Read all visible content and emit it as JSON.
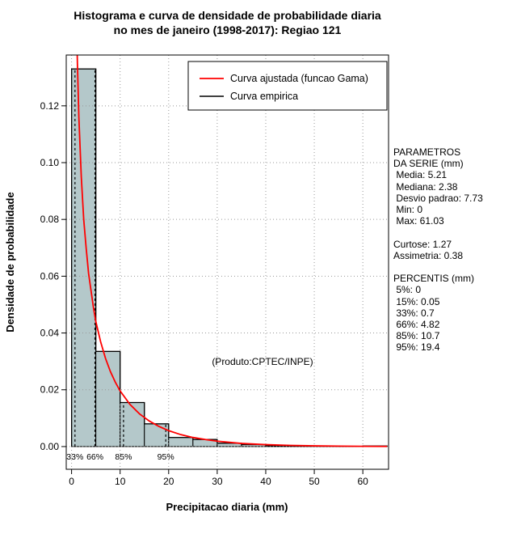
{
  "title": {
    "line1": "Histograma e curva de densidade de probabilidade diaria",
    "line2": "no mes de janeiro (1998-2017): Regiao 121"
  },
  "annotation": "(Produto:CPTEC/INPE)",
  "chart_data": {
    "type": "histogram+line",
    "xlabel": "Precipitacao diaria (mm)",
    "ylabel": "Densidade de probabilidade",
    "x_ticks": [
      0,
      10,
      20,
      30,
      40,
      50,
      60
    ],
    "y_tick_labels": [
      "0.00",
      "0.02",
      "0.04",
      "0.06",
      "0.08",
      "0.10",
      "0.12"
    ],
    "xlim": [
      -1.1,
      65.3
    ],
    "ylim": [
      -0.008,
      0.1379
    ],
    "grid_color": "#999999",
    "histogram": {
      "name": "Curva empirica",
      "bin_start": 0,
      "bin_width": 5,
      "densities": [
        0.133,
        0.0335,
        0.0155,
        0.008,
        0.0032,
        0.0025,
        0.0012,
        0.0007,
        0.0003,
        0.0002,
        0.0002,
        0.0001,
        0.0002
      ],
      "fill": "#b4c8ca",
      "edge": "#000000"
    },
    "fitted_curve": {
      "name": "Curva ajustada (funcao Gama)",
      "color": "#ff0000",
      "x": [
        0.7,
        0.9,
        1.0,
        1.2,
        1.5,
        2,
        2.5,
        3,
        3.5,
        4,
        4.5,
        5,
        6,
        7,
        8,
        9,
        10,
        12,
        14,
        16,
        18,
        20,
        22.5,
        25,
        27.5,
        30,
        35,
        40,
        45,
        50,
        55,
        60,
        65
      ],
      "y": [
        0.19,
        0.162,
        0.151,
        0.135,
        0.116,
        0.095,
        0.08,
        0.07,
        0.061,
        0.055,
        0.049,
        0.044,
        0.0368,
        0.031,
        0.0264,
        0.0227,
        0.0196,
        0.0149,
        0.0115,
        0.009,
        0.0071,
        0.0056,
        0.0042,
        0.0032,
        0.0025,
        0.0019,
        0.0011,
        0.00067,
        0.00041,
        0.00025,
        0.00015,
        9e-05,
        6e-05
      ]
    },
    "percentiles": [
      {
        "label": "33%",
        "x": 0.7
      },
      {
        "label": "66%",
        "x": 4.82
      },
      {
        "label": "85%",
        "x": 10.7
      },
      {
        "label": "95%",
        "x": 19.4
      }
    ]
  },
  "stats_panel": {
    "lines": [
      "PARAMETROS",
      "DA SERIE (mm)",
      " Media: 5.21",
      " Mediana: 2.38",
      " Desvio padrao: 7.73",
      " Min: 0",
      " Max: 61.03",
      "",
      "Curtose: 1.27",
      "Assimetria: 0.38",
      "",
      "PERCENTIS (mm)",
      " 5%: 0",
      " 15%: 0.05",
      " 33%: 0.7",
      " 66%: 4.82",
      " 85%: 10.7",
      " 95%: 19.4"
    ]
  }
}
